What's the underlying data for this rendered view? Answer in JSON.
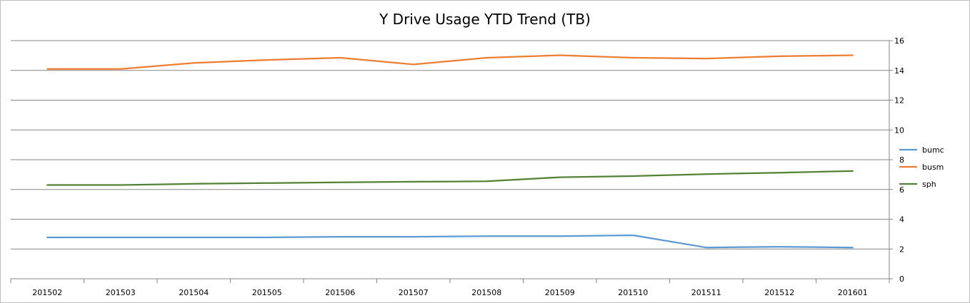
{
  "chart_data": {
    "type": "line",
    "title": "Y Drive Usage YTD Trend (TB)",
    "categories": [
      "201502",
      "201503",
      "201504",
      "201505",
      "201506",
      "201507",
      "201508",
      "201509",
      "201510",
      "201511",
      "201512",
      "201601"
    ],
    "series": [
      {
        "name": "bumc",
        "color": "#5B9BD5",
        "values": [
          2.78,
          2.78,
          2.78,
          2.78,
          2.82,
          2.82,
          2.86,
          2.86,
          2.92,
          2.1,
          2.15,
          2.1
        ]
      },
      {
        "name": "busm",
        "color": "#ED7D31",
        "values": [
          14.1,
          14.1,
          14.5,
          14.7,
          14.85,
          14.4,
          14.85,
          15.02,
          14.85,
          14.8,
          14.95,
          15.02
        ]
      },
      {
        "name": "sph",
        "color": "#548235",
        "values": [
          6.3,
          6.3,
          6.38,
          6.43,
          6.48,
          6.52,
          6.55,
          6.82,
          6.9,
          7.03,
          7.13,
          7.24
        ]
      }
    ],
    "y_axis": {
      "position": "right",
      "min": 0,
      "max": 16,
      "ticks": [
        "0",
        "2",
        "4",
        "6",
        "8",
        "10",
        "12",
        "14",
        "16"
      ]
    },
    "grid": true,
    "legend_position": "right"
  }
}
